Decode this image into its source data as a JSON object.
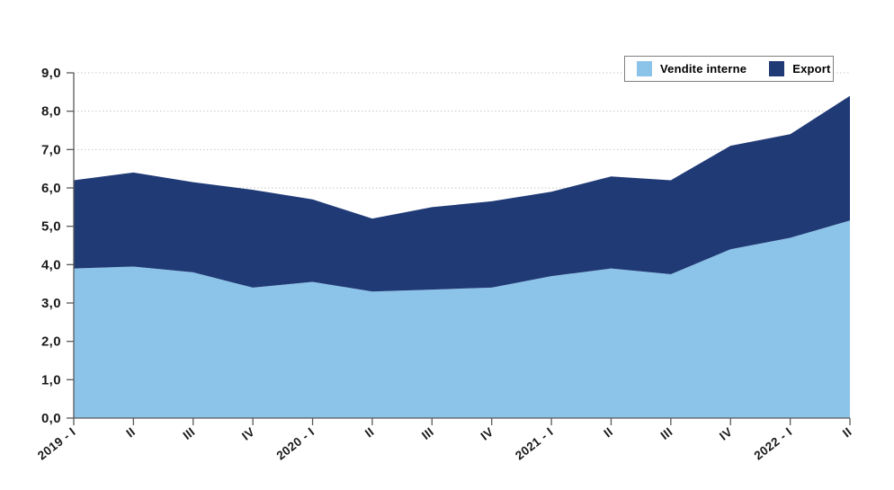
{
  "chart_data": {
    "type": "area",
    "stacked": true,
    "title": "",
    "categories": [
      "2019 - I",
      "II",
      "III",
      "IV",
      "2020 - I",
      "II",
      "III",
      "IV",
      "2021 - I",
      "II",
      "III",
      "IV",
      "2022 - I",
      "II"
    ],
    "series": [
      {
        "name": "Vendite interne",
        "color": "#8cc3e8",
        "values": [
          3.9,
          3.95,
          3.8,
          3.4,
          3.55,
          3.3,
          3.35,
          3.4,
          3.7,
          3.9,
          3.75,
          4.4,
          4.7,
          5.15
        ]
      },
      {
        "name": "Export",
        "color": "#203a76",
        "values": [
          2.3,
          2.45,
          2.35,
          2.55,
          2.15,
          1.9,
          2.15,
          2.25,
          2.2,
          2.4,
          2.45,
          2.7,
          2.7,
          3.25
        ]
      }
    ],
    "stacked_totals": [
      6.2,
      6.4,
      6.15,
      5.95,
      5.7,
      5.2,
      5.5,
      5.65,
      5.9,
      6.3,
      6.2,
      7.1,
      7.4,
      8.4
    ],
    "xlabel": "",
    "ylabel": "",
    "ylim": [
      0,
      9
    ],
    "ytick_labels": [
      "0,0",
      "1,0",
      "2,0",
      "3,0",
      "4,0",
      "5,0",
      "6,0",
      "7,0",
      "8,0",
      "9,0"
    ],
    "grid": "horizontal-dotted",
    "legend_position": "top-right",
    "axis_color": "#595959",
    "gridline_color": "#c6c6c6",
    "x_label_rotation_deg": -38
  }
}
